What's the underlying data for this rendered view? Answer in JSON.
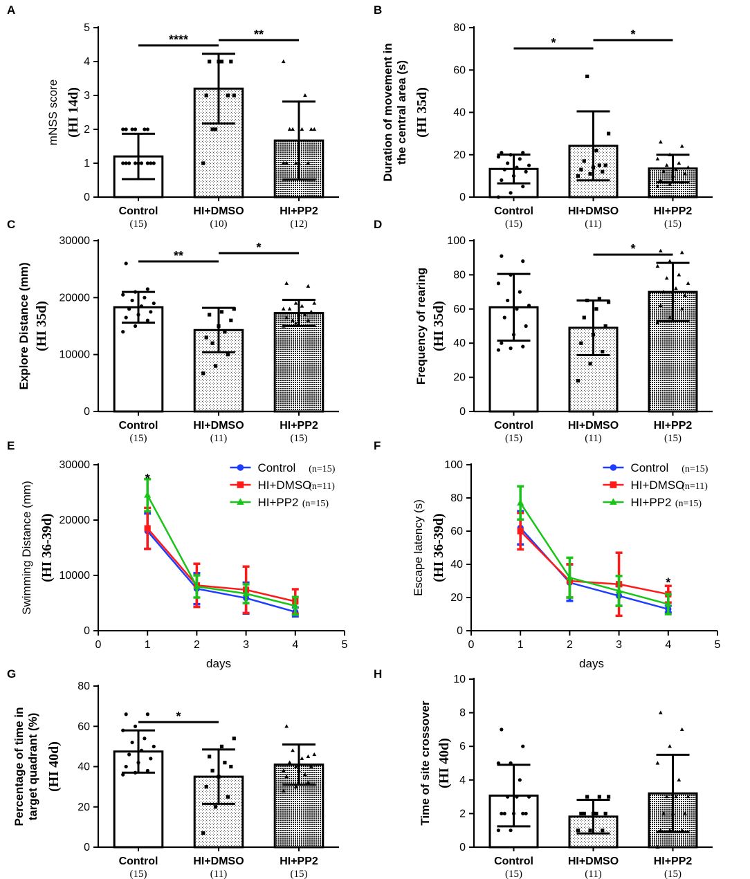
{
  "chart_data": [
    {
      "panel": "A",
      "type": "bar",
      "categories": [
        "Control",
        "HI+DMSO",
        "HI+PP2"
      ],
      "n_labels": [
        "(15)",
        "(10)",
        "(12)"
      ],
      "values": [
        1.2,
        3.2,
        1.67
      ],
      "errors": [
        0.67,
        1.03,
        1.15
      ],
      "ylabel": "mNSS score",
      "ylabel_sub": "(HI 14d)",
      "ylim": [
        0,
        5
      ],
      "yticks": [
        0,
        1,
        2,
        3,
        4,
        5
      ],
      "points": [
        [
          1,
          1,
          1,
          1,
          1,
          1,
          1,
          1,
          1,
          2,
          2,
          2,
          2,
          2,
          2
        ],
        [
          1,
          2,
          3,
          3,
          4,
          4,
          4,
          4,
          3,
          2
        ],
        [
          1,
          1,
          1,
          1,
          1,
          2,
          2,
          2,
          2,
          2,
          3,
          4
        ]
      ],
      "significance": [
        {
          "from": 0,
          "to": 1,
          "label": "****"
        },
        {
          "from": 1,
          "to": 2,
          "label": "**"
        }
      ]
    },
    {
      "panel": "B",
      "type": "bar",
      "categories": [
        "Control",
        "HI+DMSO",
        "HI+PP2"
      ],
      "n_labels": [
        "(15)",
        "(11)",
        "(15)"
      ],
      "values": [
        13.3,
        24.2,
        13.5
      ],
      "errors": [
        6.8,
        16.3,
        6.5
      ],
      "ylabel": "Duration of movement in the central area (s)",
      "ylabel_sub": "(HI 35d)",
      "ylim": [
        0,
        80
      ],
      "yticks": [
        0,
        20,
        40,
        60,
        80
      ],
      "points": [
        [
          0,
          2,
          5,
          8,
          10,
          12,
          13,
          14,
          15,
          16,
          18,
          19,
          20,
          21,
          21
        ],
        [
          10,
          11,
          12,
          13,
          14,
          15,
          17,
          22,
          30,
          57,
          15
        ],
        [
          5,
          6,
          7,
          8,
          10,
          11,
          12,
          13,
          14,
          15,
          16,
          18,
          20,
          24,
          26
        ]
      ],
      "significance": [
        {
          "from": 0,
          "to": 1,
          "label": "*"
        },
        {
          "from": 1,
          "to": 2,
          "label": "*"
        }
      ]
    },
    {
      "panel": "C",
      "type": "bar",
      "categories": [
        "Control",
        "HI+DMSO",
        "HI+PP2"
      ],
      "n_labels": [
        "(15)",
        "(11)",
        "(15)"
      ],
      "values": [
        18300,
        14300,
        17300
      ],
      "errors": [
        2700,
        3900,
        2300
      ],
      "ylabel": "Explore Distance (mm)",
      "ylabel_sub": "(HI 35d)",
      "ylim": [
        0,
        30000
      ],
      "yticks": [
        0,
        10000,
        20000,
        30000
      ],
      "points": [
        [
          14000,
          15000,
          16000,
          16500,
          17000,
          17500,
          18000,
          18500,
          19000,
          19500,
          20000,
          20500,
          21000,
          21500,
          26000
        ],
        [
          6700,
          8000,
          10000,
          13000,
          15000,
          16000,
          17000,
          17500,
          18000,
          12000,
          14000
        ],
        [
          15000,
          15500,
          16000,
          16500,
          17000,
          17500,
          18000,
          18500,
          19000,
          16000,
          17000,
          18000,
          19000,
          22000,
          22500
        ]
      ],
      "significance": [
        {
          "from": 0,
          "to": 1,
          "label": "**"
        },
        {
          "from": 1,
          "to": 2,
          "label": "*"
        }
      ]
    },
    {
      "panel": "D",
      "type": "bar",
      "categories": [
        "Control",
        "HI+DMSO",
        "HI+PP2"
      ],
      "n_labels": [
        "(15)",
        "(11)",
        "(15)"
      ],
      "values": [
        61,
        49,
        70
      ],
      "errors": [
        19.5,
        16,
        17
      ],
      "ylabel": "Frequency of rearing",
      "ylabel_sub": "(HI 35d)",
      "ylim": [
        0,
        100
      ],
      "yticks": [
        0,
        20,
        40,
        60,
        80,
        100
      ],
      "points": [
        [
          36,
          37,
          38,
          40,
          45,
          50,
          55,
          60,
          62,
          65,
          70,
          75,
          80,
          88,
          91
        ],
        [
          18,
          28,
          35,
          40,
          45,
          50,
          55,
          60,
          64,
          65,
          66
        ],
        [
          52,
          55,
          60,
          62,
          65,
          68,
          70,
          72,
          75,
          78,
          80,
          85,
          88,
          93,
          94
        ]
      ],
      "significance": [
        {
          "from": 1,
          "to": 2,
          "label": "*"
        }
      ]
    },
    {
      "panel": "E",
      "type": "line",
      "x": [
        1,
        2,
        3,
        4
      ],
      "series": [
        {
          "name": "Control",
          "n": "(n=15)",
          "color": "#1f3dff",
          "marker": "circle",
          "values": [
            18000,
            7600,
            5900,
            3400
          ],
          "errors": [
            3200,
            2800,
            2800,
            800
          ]
        },
        {
          "name": "HI+DMSO",
          "n": "(n=11)",
          "color": "#ff1a1a",
          "marker": "square",
          "values": [
            18500,
            8200,
            7400,
            5300
          ],
          "errors": [
            3700,
            3900,
            4200,
            2200
          ]
        },
        {
          "name": "HI+PP2",
          "n": "(n=15)",
          "color": "#19c419",
          "marker": "triangle",
          "values": [
            24500,
            8000,
            6700,
            4500
          ],
          "errors": [
            2900,
            2000,
            1700,
            1600
          ]
        }
      ],
      "xlabel": "days",
      "ylabel": "Swimming Distance (mm)",
      "ylabel_sub": "(HI 36-39d)",
      "xlim": [
        0,
        5
      ],
      "xticks": [
        0,
        1,
        2,
        3,
        4,
        5
      ],
      "ylim": [
        0,
        30000
      ],
      "yticks": [
        0,
        10000,
        20000,
        30000
      ],
      "annotations": [
        {
          "x": 1,
          "y": 27500,
          "text": "*"
        }
      ]
    },
    {
      "panel": "F",
      "type": "line",
      "x": [
        1,
        2,
        3,
        4
      ],
      "series": [
        {
          "name": "Control",
          "n": "(n=15)",
          "color": "#1f3dff",
          "marker": "circle",
          "values": [
            62,
            29,
            21,
            13
          ],
          "errors": [
            10,
            11,
            6,
            2
          ]
        },
        {
          "name": "HI+DMSO",
          "n": "(n=11)",
          "color": "#ff1a1a",
          "marker": "square",
          "values": [
            60,
            30,
            28,
            22
          ],
          "errors": [
            11,
            10,
            19,
            5
          ]
        },
        {
          "name": "HI+PP2",
          "n": "(n=15)",
          "color": "#19c419",
          "marker": "triangle",
          "values": [
            77,
            32,
            24,
            16
          ],
          "errors": [
            10,
            12,
            9,
            6
          ]
        }
      ],
      "xlabel": "days",
      "ylabel": "Escape latency (s)",
      "ylabel_sub": "(HI 36-39d)",
      "xlim": [
        0,
        5
      ],
      "xticks": [
        0,
        1,
        2,
        3,
        4,
        5
      ],
      "ylim": [
        0,
        100
      ],
      "yticks": [
        0,
        20,
        40,
        60,
        80,
        100
      ],
      "annotations": [
        {
          "x": 4,
          "y": 29,
          "text": "*"
        }
      ]
    },
    {
      "panel": "G",
      "type": "bar",
      "categories": [
        "Control",
        "HI+DMSO",
        "HI+PP2"
      ],
      "n_labels": [
        "(15)",
        "(11)",
        "(15)"
      ],
      "values": [
        47.5,
        35,
        41
      ],
      "errors": [
        10.5,
        13.5,
        10
      ],
      "ylabel": "Percentage of time in target quadrant (%)",
      "ylabel_sub": "(HI 40d)",
      "ylim": [
        0,
        80
      ],
      "yticks": [
        0,
        20,
        40,
        60,
        80
      ],
      "points": [
        [
          36,
          37,
          38,
          40,
          42,
          44,
          46,
          48,
          50,
          52,
          54,
          58,
          60,
          66,
          66
        ],
        [
          7,
          20,
          25,
          30,
          35,
          40,
          45,
          50,
          54,
          38,
          42
        ],
        [
          28,
          30,
          32,
          35,
          38,
          40,
          42,
          44,
          46,
          48,
          36,
          38,
          40,
          45,
          60
        ]
      ],
      "significance": [
        {
          "from": 0,
          "to": 1,
          "label": "*"
        }
      ]
    },
    {
      "panel": "H",
      "type": "bar",
      "categories": [
        "Control",
        "HI+DMSO",
        "HI+PP2"
      ],
      "n_labels": [
        "(15)",
        "(11)",
        "(15)"
      ],
      "values": [
        3.07,
        1.82,
        3.2
      ],
      "errors": [
        1.83,
        1.0,
        2.3
      ],
      "ylabel": "Time of site crossover",
      "ylabel_sub": "(HI 40d)",
      "ylim": [
        0,
        10
      ],
      "yticks": [
        0,
        2,
        4,
        6,
        8,
        10
      ],
      "points": [
        [
          1,
          1,
          2,
          2,
          2,
          2,
          2,
          3,
          3,
          3,
          4,
          5,
          5,
          6,
          7
        ],
        [
          1,
          1,
          1,
          2,
          2,
          2,
          2,
          2,
          3,
          3,
          3
        ],
        [
          0,
          1,
          1,
          1,
          2,
          2,
          2,
          3,
          3,
          3,
          4,
          5,
          6,
          7,
          8
        ]
      ],
      "significance": []
    }
  ]
}
